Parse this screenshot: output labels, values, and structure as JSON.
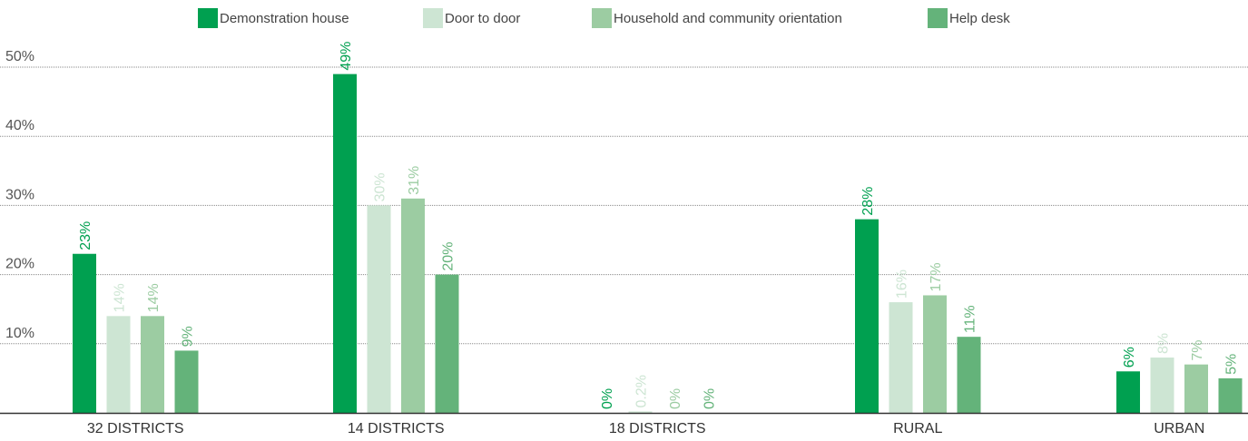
{
  "chart_data": {
    "type": "bar",
    "categories": [
      "32 DISTRICTS",
      "14 DISTRICTS",
      "18 DISTRICTS",
      "RURAL",
      "URBAN"
    ],
    "series": [
      {
        "name": "Demonstration house",
        "color": "#00A050",
        "values": [
          23,
          49,
          0,
          28,
          6
        ],
        "labels": [
          "23%",
          "49%",
          "0%",
          "28%",
          "6%"
        ]
      },
      {
        "name": "Door to door",
        "color": "#CDE5D3",
        "values": [
          14,
          30,
          0.2,
          16,
          8
        ],
        "labels": [
          "14%",
          "30%",
          "0.2%",
          "16%",
          "8%"
        ]
      },
      {
        "name": "Household and community orientation",
        "color": "#9CCCA2",
        "values": [
          14,
          31,
          0,
          17,
          7
        ],
        "labels": [
          "14%",
          "31%",
          "0%",
          "17%",
          "7%"
        ]
      },
      {
        "name": "Help desk",
        "color": "#64B37A",
        "values": [
          9,
          20,
          0,
          11,
          5
        ],
        "labels": [
          "9%",
          "20%",
          "0%",
          "11%",
          "5%"
        ]
      }
    ],
    "yticks": [
      {
        "value": 10,
        "label": "10%"
      },
      {
        "value": 20,
        "label": "20%"
      },
      {
        "value": 30,
        "label": "30%"
      },
      {
        "value": 40,
        "label": "40%"
      },
      {
        "value": 50,
        "label": "50%"
      }
    ],
    "ylim": [
      0,
      50
    ],
    "grid": true,
    "legend_position": "top"
  },
  "label_colors": [
    "#00A050",
    "#CDE5D3",
    "#9CCCA2",
    "#64B37A"
  ]
}
